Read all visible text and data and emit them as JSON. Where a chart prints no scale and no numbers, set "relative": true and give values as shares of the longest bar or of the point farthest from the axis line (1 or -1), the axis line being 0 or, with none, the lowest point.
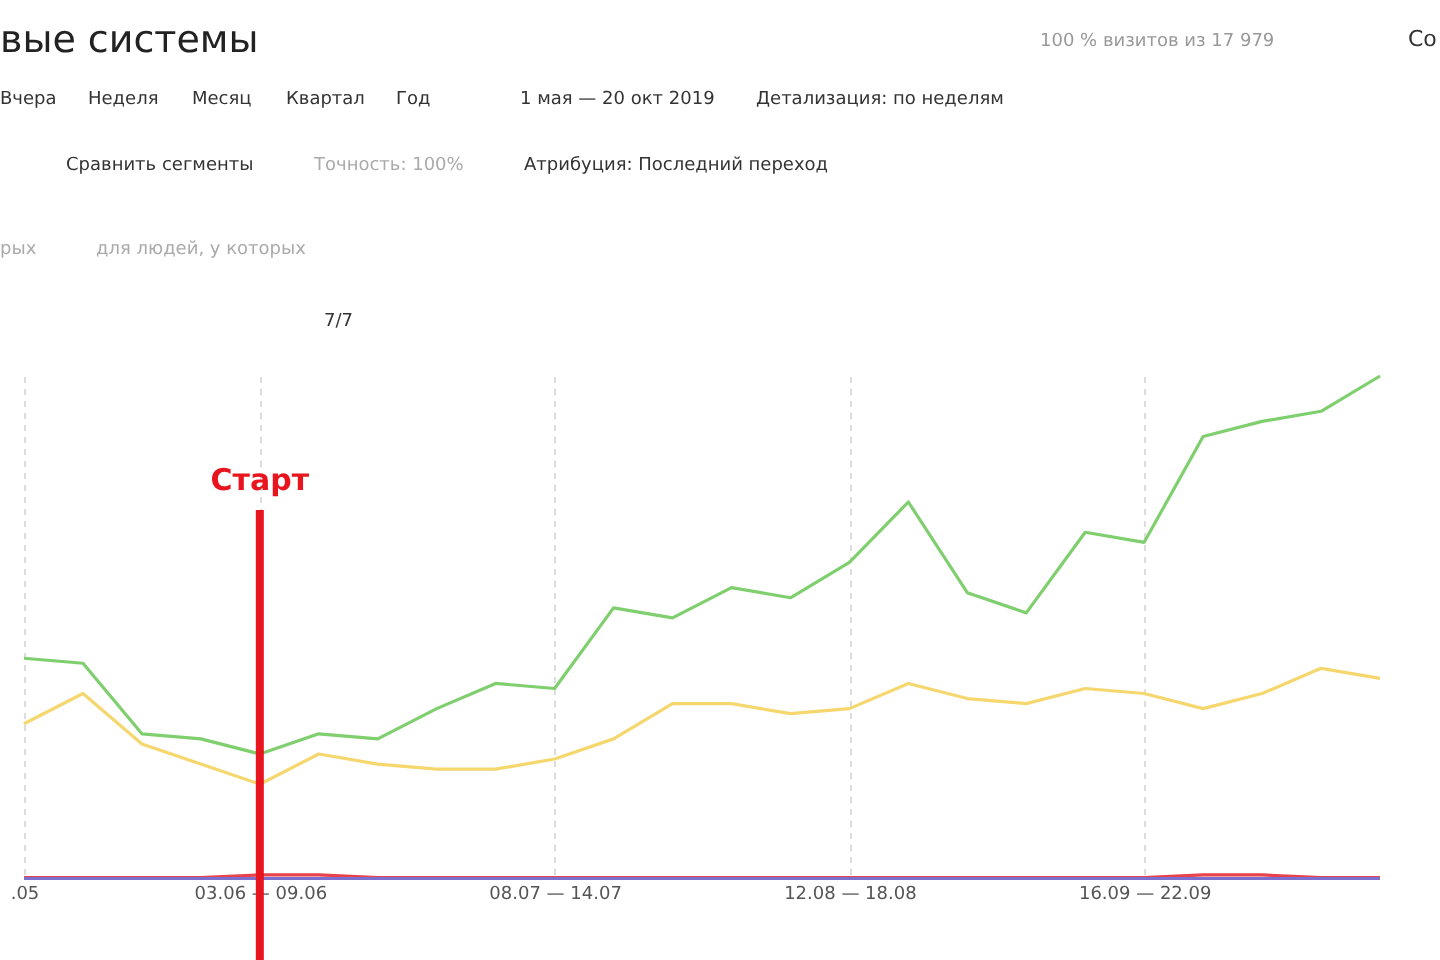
{
  "chart_data": {
    "type": "line",
    "title": "вые системы",
    "relative": true,
    "legend": false,
    "grid": "x",
    "marker": "none",
    "line_style": "solid",
    "categories": [
      ".05",
      null,
      null,
      null,
      "03.06 — 09.06",
      null,
      null,
      null,
      null,
      "08.07 — 14.07",
      null,
      null,
      null,
      null,
      "12.08 — 18.08",
      null,
      null,
      null,
      null,
      "16.09 — 22.09",
      null,
      null,
      null,
      null
    ],
    "series": [
      {
        "color": "#7fcf6f",
        "values": [
          0.44,
          0.43,
          0.29,
          0.28,
          0.25,
          0.29,
          0.28,
          0.34,
          0.39,
          0.38,
          0.54,
          0.52,
          0.58,
          0.56,
          0.63,
          0.75,
          0.57,
          0.53,
          0.69,
          0.67,
          0.88,
          0.91,
          0.93,
          1
        ]
      },
      {
        "color": "#f5d76e",
        "values": [
          0.31,
          0.37,
          0.27,
          0.23,
          0.19,
          0.25,
          0.23,
          0.22,
          0.22,
          0.24,
          0.28,
          0.35,
          0.35,
          0.33,
          0.34,
          0.39,
          0.36,
          0.35,
          0.38,
          0.37,
          0.34,
          0.37,
          0.42,
          0.4
        ]
      },
      {
        "color": "#e8424a",
        "values": [
          0.005,
          0.005,
          0.005,
          0.005,
          0.01,
          0.01,
          0.005,
          0.005,
          0.005,
          0.005,
          0.005,
          0.005,
          0.005,
          0.005,
          0.005,
          0.005,
          0.005,
          0.005,
          0.005,
          0.005,
          0.01,
          0.01,
          0.005,
          0.005
        ]
      },
      {
        "color": "#7b6fd0",
        "values": [
          0.003,
          0.003,
          0.003,
          0.003,
          0.003,
          0.003,
          0.003,
          0.003,
          0.003,
          0.003,
          0.003,
          0.003,
          0.003,
          0.003,
          0.003,
          0.003,
          0.003,
          0.003,
          0.003,
          0.003,
          0.003,
          0.003,
          0.003,
          0.003
        ]
      }
    ],
    "ref_lines": [
      {
        "axis": "x",
        "value": "03.06 — 09.06",
        "label": "Старт",
        "color": "#e8141e"
      }
    ],
    "annotations": [
      "100 % визитов из 17 979",
      "Со",
      "Вчера",
      "Неделя",
      "Месяц",
      "Квартал",
      "Год",
      "1 мая — 20 окт 2019",
      "Детализация: по неделям",
      "Сравнить сегменты",
      "Точность: 100%",
      "Атрибуция: Последний переход",
      "рых",
      "для людей, у которых",
      "7/7"
    ]
  }
}
